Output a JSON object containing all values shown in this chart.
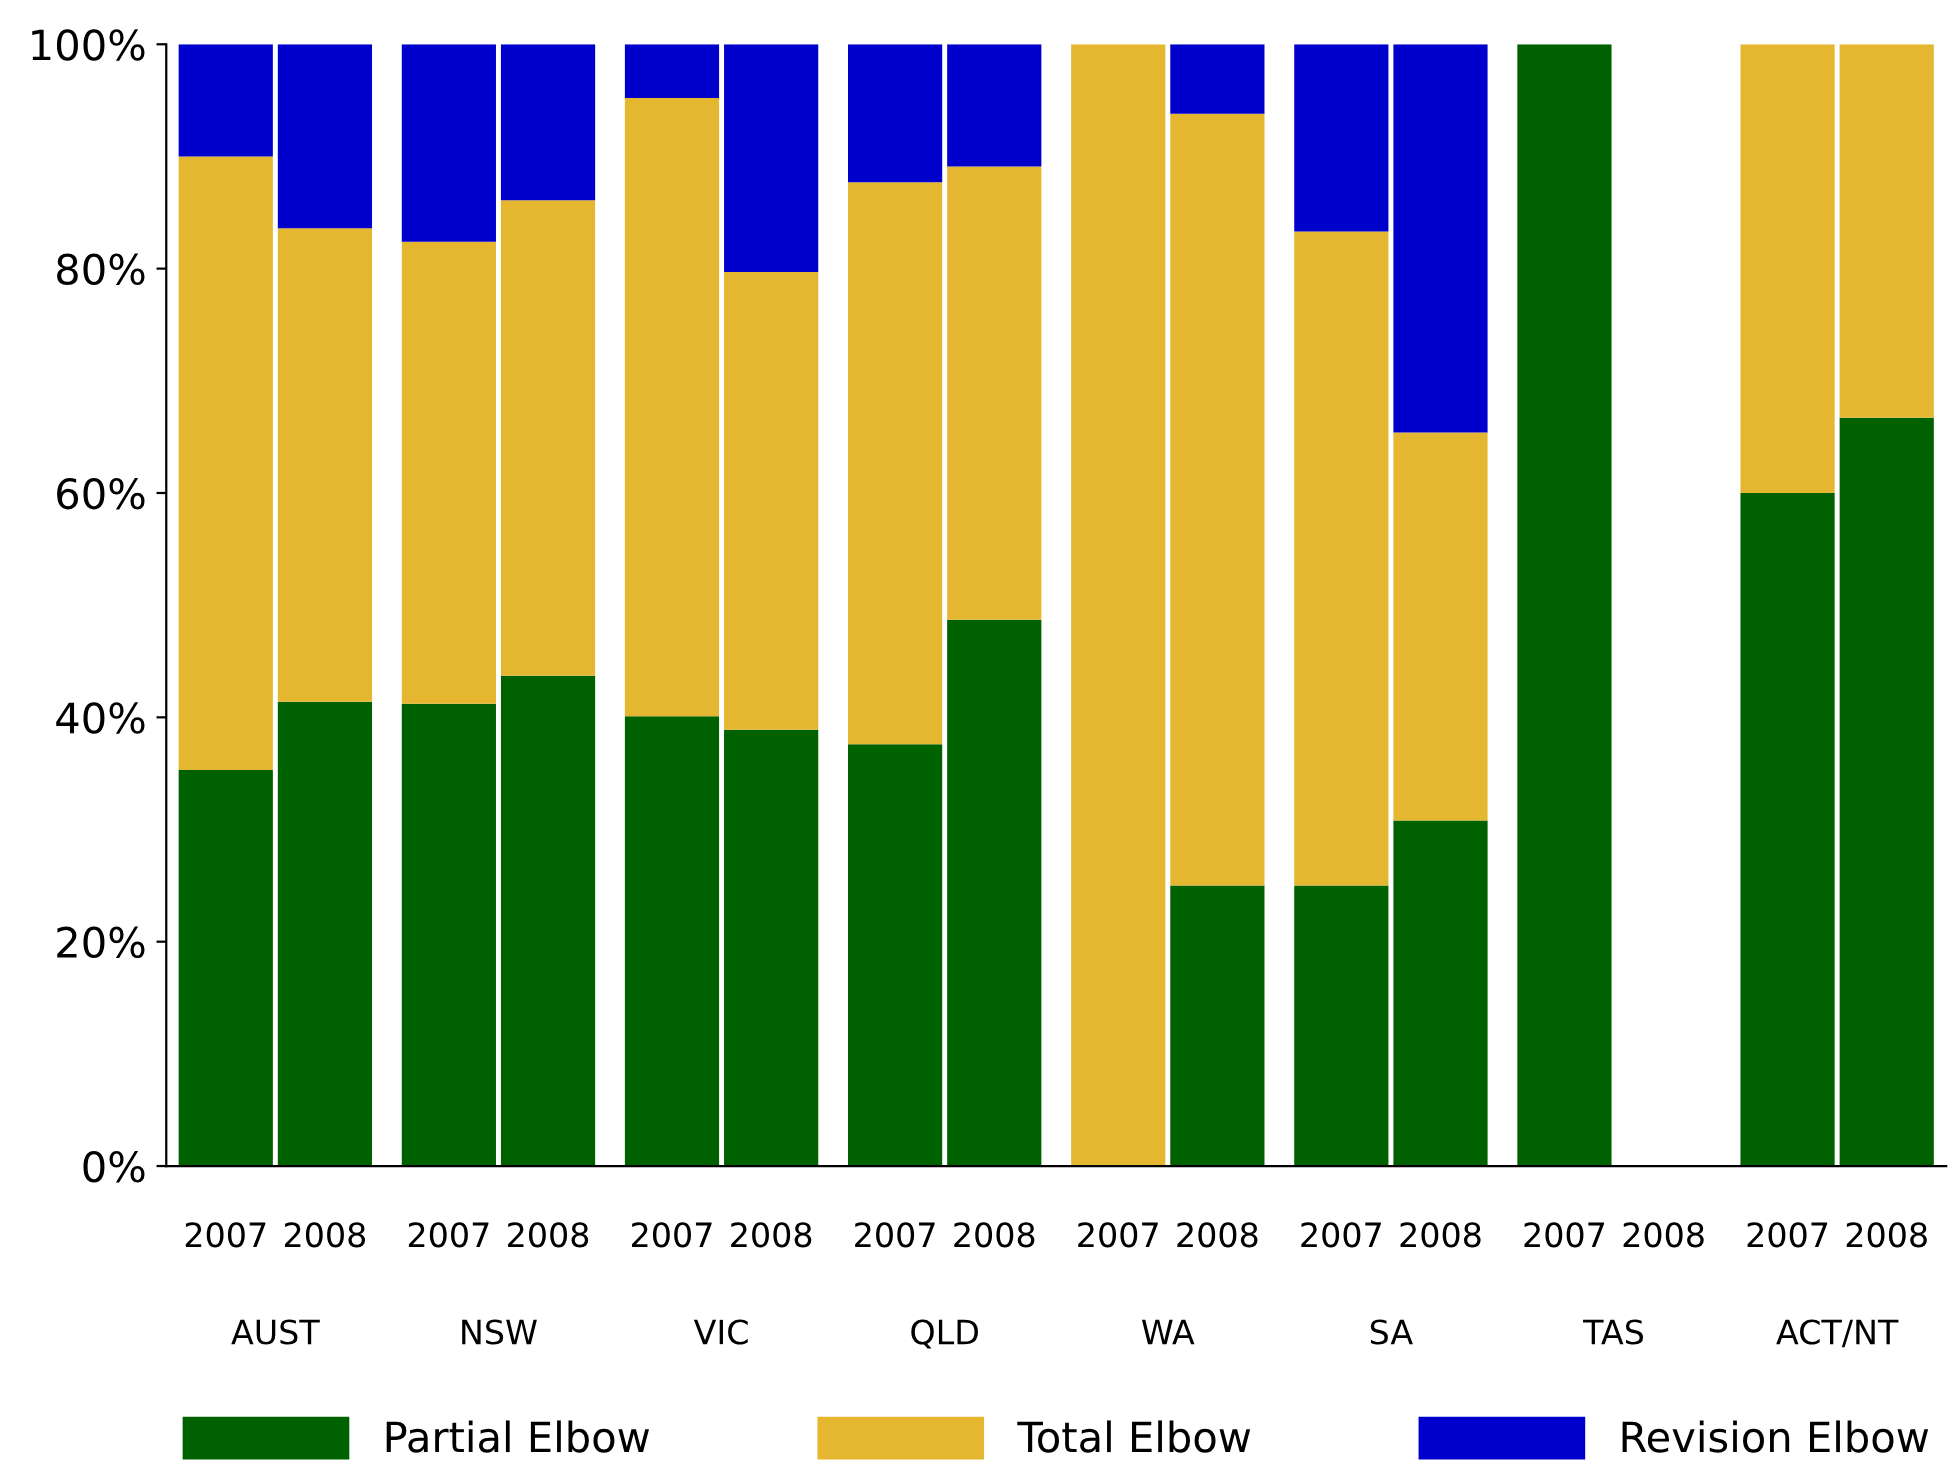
{
  "chart_data": {
    "type": "bar",
    "stacked": true,
    "categories": [
      "2007",
      "2008",
      "2007",
      "2008",
      "2007",
      "2008",
      "2007",
      "2008",
      "2007",
      "2008",
      "2007",
      "2008",
      "2007",
      "2008",
      "2007",
      "2008"
    ],
    "annotations": [
      "AUST",
      "NSW",
      "VIC",
      "QLD",
      "WA",
      "SA",
      "TAS",
      "ACT/NT"
    ],
    "series": [
      {
        "name": "Partial Elbow",
        "color": "#006100",
        "values": [
          35.3,
          41.4,
          41.2,
          43.7,
          40.1,
          38.9,
          37.6,
          48.7,
          0,
          25,
          25,
          30.8,
          100,
          0,
          60,
          66.7
        ]
      },
      {
        "name": "Total Elbow",
        "color": "#e5b730",
        "values": [
          54.7,
          42.2,
          41.2,
          42.4,
          55.1,
          40.8,
          50.1,
          40.4,
          100,
          68.8,
          58.3,
          34.6,
          0,
          0,
          40,
          33.3
        ]
      },
      {
        "name": "Revision Elbow",
        "color": "#0000cc",
        "values": [
          10,
          16.4,
          17.6,
          13.9,
          4.8,
          20.3,
          12.3,
          10.9,
          0,
          6.2,
          16.7,
          34.6,
          0,
          0,
          0,
          0
        ]
      }
    ],
    "ylim": [
      0,
      100
    ],
    "yticks": [
      {
        "value": 0,
        "label": "0%"
      },
      {
        "value": 20,
        "label": "20%"
      },
      {
        "value": 40,
        "label": "40%"
      },
      {
        "value": 60,
        "label": "60%"
      },
      {
        "value": 80,
        "label": "80%"
      },
      {
        "value": 100,
        "label": "100%"
      }
    ],
    "grid": false,
    "legend": "bottom"
  }
}
